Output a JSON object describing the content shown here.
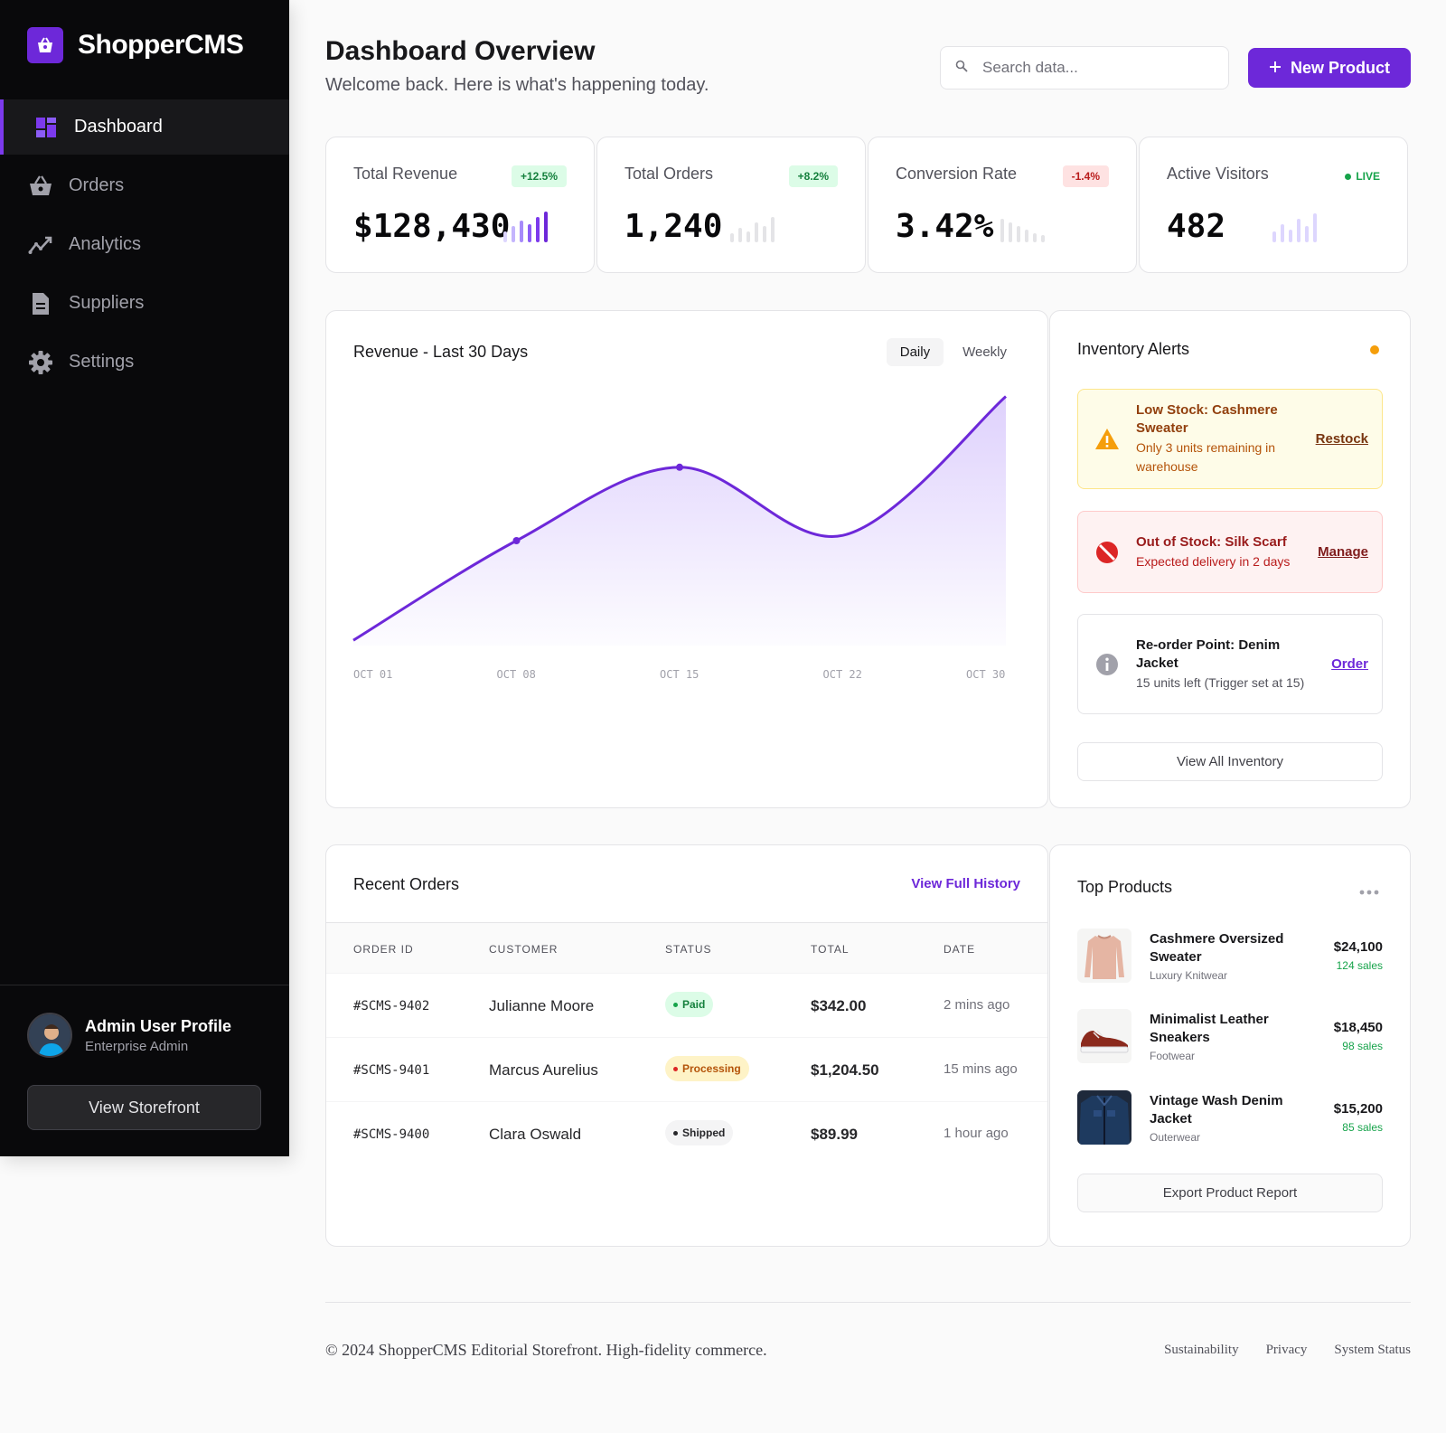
{
  "brand": {
    "name": "ShopperCMS"
  },
  "sidebar": {
    "items": [
      {
        "label": "Dashboard",
        "icon": "dashboard-icon",
        "active": true
      },
      {
        "label": "Orders",
        "icon": "basket-icon"
      },
      {
        "label": "Analytics",
        "icon": "analytics-icon"
      },
      {
        "label": "Suppliers",
        "icon": "document-icon"
      },
      {
        "label": "Settings",
        "icon": "gear-icon"
      }
    ],
    "profile": {
      "name": "Admin User Profile",
      "role": "Enterprise Admin"
    },
    "storefront_label": "View Storefront"
  },
  "header": {
    "title": "Dashboard Overview",
    "subtitle": "Welcome back. Here is what's happening today.",
    "search_placeholder": "Search data...",
    "new_product_label": "New Product"
  },
  "stats": [
    {
      "label": "Total Revenue",
      "badge": "+12.5%",
      "value": "$128,430"
    },
    {
      "label": "Total Orders",
      "badge": "+8.2%",
      "value": "1,240"
    },
    {
      "label": "Conversion Rate",
      "badge": "-1.4%",
      "value": "3.42%"
    },
    {
      "label": "Active Visitors",
      "badge": "LIVE",
      "value": "482"
    }
  ],
  "revenue": {
    "title": "Revenue - Last 30 Days",
    "toggle": [
      "Daily",
      "Weekly"
    ],
    "active_toggle": "Daily",
    "accent": "#6d28d9"
  },
  "chart_data": {
    "type": "area",
    "title": "Revenue - Last 30 Days",
    "categories": [
      "OCT 01",
      "OCT 08",
      "OCT 15",
      "OCT 22",
      "OCT 30"
    ],
    "x_ticks": [
      "OCT 01",
      "OCT 08",
      "OCT 15",
      "OCT 22",
      "OCT 30"
    ],
    "values": [
      2,
      40,
      68,
      42,
      95
    ],
    "ylim": [
      0,
      100
    ],
    "grid": false,
    "marked_points": [
      1,
      2
    ]
  },
  "inventory": {
    "title": "Inventory Alerts",
    "alerts": [
      {
        "title": "Low Stock: Cashmere Sweater",
        "desc": "Only 3 units remaining in warehouse",
        "action": "Restock",
        "icon": "warning-icon"
      },
      {
        "title": "Out of Stock: Silk Scarf",
        "desc": "Expected delivery in 2 days",
        "action": "Manage",
        "icon": "blocked-icon"
      },
      {
        "title": "Re-order Point: Denim Jacket",
        "desc": "15 units left (Trigger set at 15)",
        "action": "Order",
        "icon": "info-icon"
      }
    ],
    "view_all_label": "View All Inventory"
  },
  "orders": {
    "title": "Recent Orders",
    "history_label": "View Full History",
    "columns": [
      "ORDER ID",
      "CUSTOMER",
      "STATUS",
      "TOTAL",
      "DATE"
    ],
    "rows": [
      {
        "id": "#SCMS-9402",
        "customer": "Julianne Moore",
        "status": "Paid",
        "total": "$342.00",
        "date": "2 mins ago"
      },
      {
        "id": "#SCMS-9401",
        "customer": "Marcus Aurelius",
        "status": "Processing",
        "total": "$1,204.50",
        "date": "15 mins ago"
      },
      {
        "id": "#SCMS-9400",
        "customer": "Clara Oswald",
        "status": "Shipped",
        "total": "$89.99",
        "date": "1 hour ago"
      }
    ]
  },
  "top_products": {
    "title": "Top Products",
    "items": [
      {
        "name": "Cashmere Oversized Sweater",
        "category": "Luxury Knitwear",
        "price": "$24,100",
        "sales": "124 sales"
      },
      {
        "name": "Minimalist Leather Sneakers",
        "category": "Footwear",
        "price": "$18,450",
        "sales": "98 sales"
      },
      {
        "name": "Vintage Wash Denim Jacket",
        "category": "Outerwear",
        "price": "$15,200",
        "sales": "85 sales"
      }
    ],
    "export_label": "Export Product Report"
  },
  "footer": {
    "copyright": "© 2024 ShopperCMS Editorial Storefront. High-fidelity commerce.",
    "links": [
      "Sustainability",
      "Privacy",
      "System Status"
    ]
  }
}
